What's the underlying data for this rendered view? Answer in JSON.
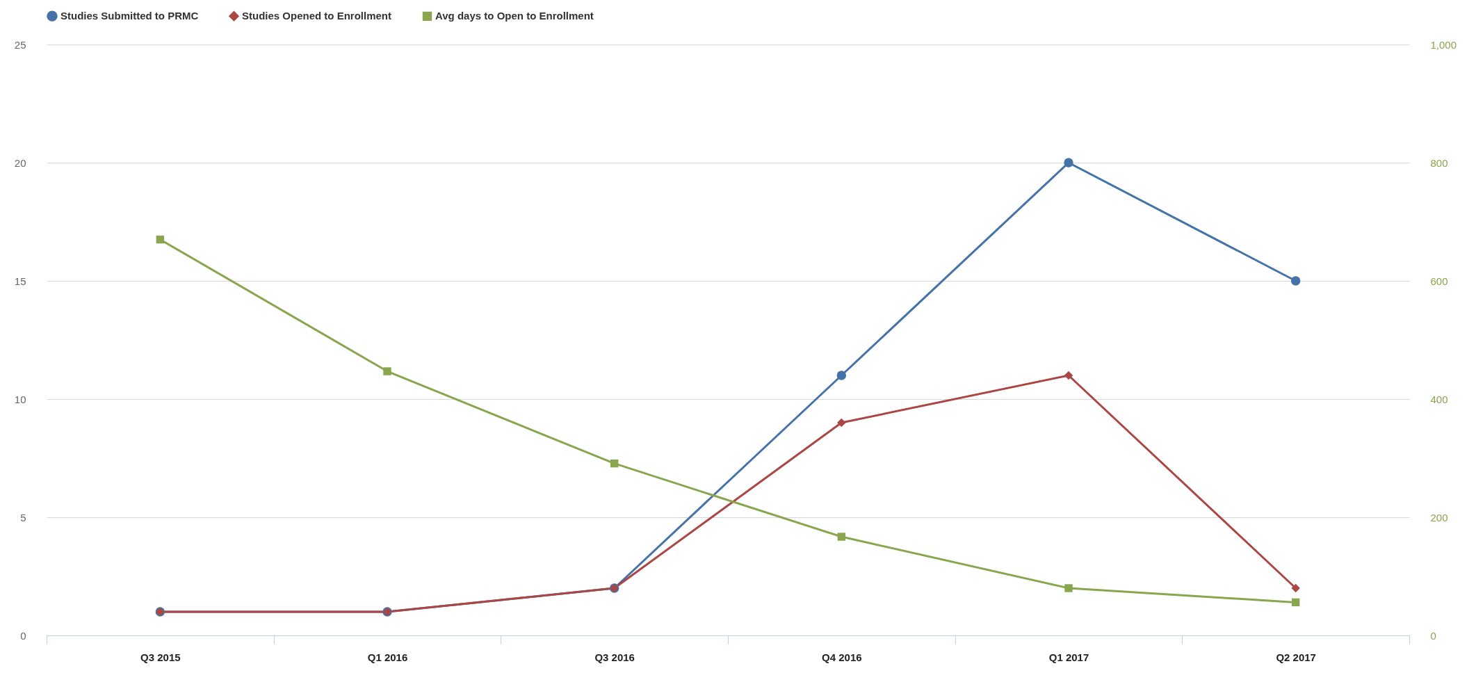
{
  "chart_data": {
    "type": "line",
    "categories": [
      "Q3 2015",
      "Q1 2016",
      "Q3 2016",
      "Q4 2016",
      "Q1 2017",
      "Q2 2017"
    ],
    "series": [
      {
        "name": "Studies Submitted to PRMC",
        "color": "#4572a7",
        "marker": "circle",
        "values": [
          1,
          1,
          2,
          11,
          20,
          15
        ]
      },
      {
        "name": "Studies Opened to Enrollment",
        "color": "#aa4643",
        "marker": "diamond",
        "values": [
          1,
          1,
          2,
          9,
          11,
          2
        ]
      },
      {
        "name": "Avg days to Open to Enrollment",
        "color": "#89a54e",
        "marker": "square",
        "axis": "y2",
        "values": [
          670,
          447,
          291,
          167,
          80,
          56
        ]
      }
    ],
    "ylim": [
      0,
      25
    ],
    "yticks": [
      0,
      5,
      10,
      15,
      20,
      25
    ],
    "y2lim": [
      0,
      1000
    ],
    "y2ticks": [
      0,
      200,
      400,
      600,
      800,
      {
        "value": 1000,
        "label": "1,000"
      }
    ],
    "grid": "y",
    "legend": "top"
  }
}
